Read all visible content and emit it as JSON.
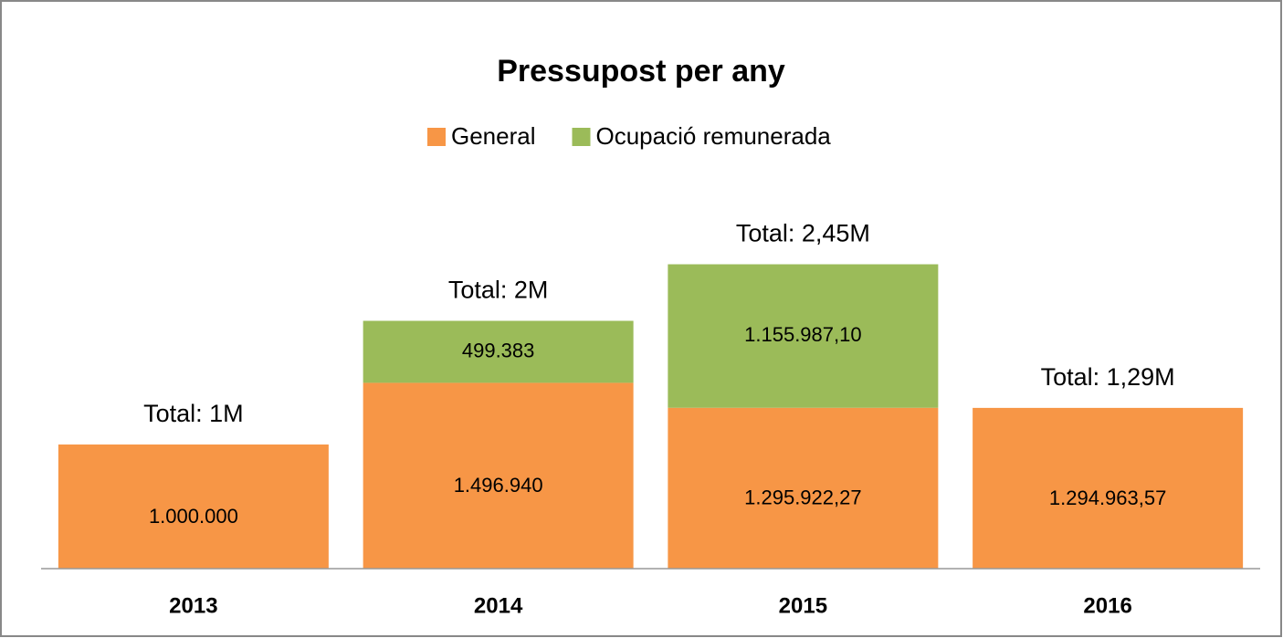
{
  "chart_data": {
    "type": "stacked_bar",
    "title": "Pressupost per any",
    "categories": [
      "2013",
      "2014",
      "2015",
      "2016"
    ],
    "series": [
      {
        "name": "General",
        "color": "#f79646",
        "values": [
          1000000,
          1496940,
          1295922.27,
          1294963.57
        ],
        "value_labels": [
          "1.000.000",
          "1.496.940",
          "1.295.922,27",
          "1.294.963,57"
        ]
      },
      {
        "name": "Ocupació remunerada",
        "color": "#9bbb59",
        "values": [
          null,
          499383,
          1155987.1,
          null
        ],
        "value_labels": [
          null,
          "499.383",
          "1.155.987,10",
          null
        ]
      }
    ],
    "annotations": [
      "Total: 1M",
      "Total: 2M",
      "Total: 2,45M",
      "Total: 1,29M"
    ],
    "legend": "top"
  }
}
